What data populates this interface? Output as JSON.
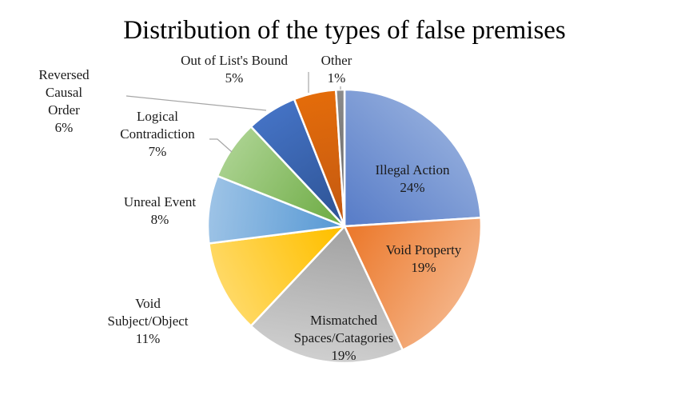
{
  "chart_data": {
    "type": "pie",
    "title": "Distribution of the types of false premises",
    "slices": [
      {
        "label": "Illegal Action",
        "value": 24,
        "value_label": "24%",
        "color": "#5B7FC9",
        "color_light": "#8EA9DB"
      },
      {
        "label": "Void Property",
        "value": 19,
        "value_label": "19%",
        "color": "#EC7B2F",
        "color_light": "#F4B183"
      },
      {
        "label": "Mismatched Spaces/Catagories",
        "value": 19,
        "value_label": "19%",
        "color": "#A5A5A5",
        "color_light": "#CFCFCF"
      },
      {
        "label": "Void Subject/Object",
        "value": 11,
        "value_label": "11%",
        "color": "#FFC000",
        "color_light": "#FFD966"
      },
      {
        "label": "Unreal Event",
        "value": 8,
        "value_label": "8%",
        "color": "#5B9BD5",
        "color_light": "#9DC3E6"
      },
      {
        "label": "Logical Contradiction",
        "value": 7,
        "value_label": "7%",
        "color": "#70AD47",
        "color_light": "#A9D18E"
      },
      {
        "label": "Reversed Causal Order",
        "value": 6,
        "value_label": "6%",
        "color": "#2F5597",
        "color_light": "#4472C4"
      },
      {
        "label": "Out of List's Bound",
        "value": 5,
        "value_label": "5%",
        "color": "#C55A11",
        "color_light": "#E46C0A"
      },
      {
        "label": "Other",
        "value": 1,
        "value_label": "1%",
        "color": "#636363",
        "color_light": "#8C8C8C"
      }
    ]
  }
}
